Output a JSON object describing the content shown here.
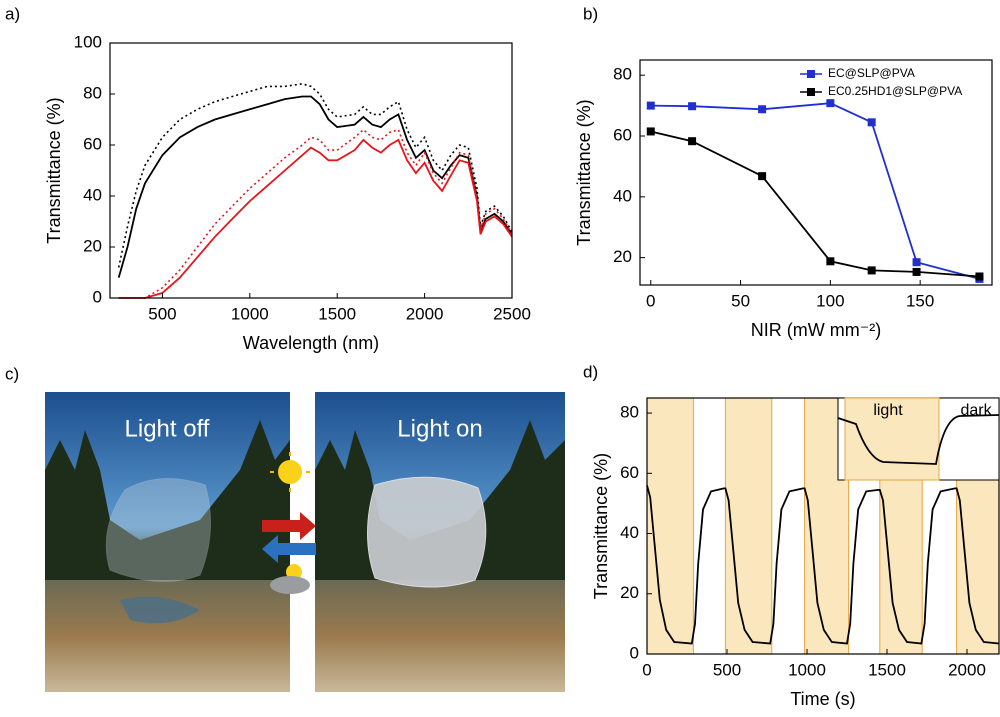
{
  "chart_data": [
    {
      "type": "line",
      "panel_label": "a)",
      "x_label": "Wavelength (nm)",
      "y_label": "Transmittance (%)",
      "xlim": [
        200,
        2500
      ],
      "xticks": [
        500,
        1000,
        1500,
        2000,
        2500
      ],
      "ylim": [
        0,
        100
      ],
      "yticks": [
        0,
        20,
        40,
        60,
        80,
        100
      ],
      "x": [
        250,
        300,
        350,
        400,
        500,
        600,
        700,
        800,
        900,
        1000,
        1100,
        1200,
        1300,
        1350,
        1400,
        1450,
        1500,
        1600,
        1650,
        1700,
        1750,
        1800,
        1850,
        1900,
        1950,
        2000,
        2050,
        2100,
        2150,
        2200,
        2250,
        2300,
        2320,
        2350,
        2400,
        2450,
        2500
      ],
      "series": [
        {
          "color": "#000000",
          "style": "solid",
          "values": [
            8,
            20,
            35,
            45,
            56,
            63,
            67,
            70,
            72,
            74,
            76,
            78,
            79,
            79,
            76,
            70,
            67,
            68,
            71,
            68,
            67,
            70,
            72,
            62,
            55,
            58,
            50,
            47,
            52,
            56,
            55,
            40,
            26,
            31,
            33,
            30,
            25
          ]
        },
        {
          "color": "#000000",
          "style": "dotted",
          "values": [
            12,
            28,
            42,
            52,
            63,
            70,
            74,
            77,
            79,
            81,
            83,
            83,
            84,
            83,
            80,
            74,
            71,
            72,
            75,
            72,
            72,
            75,
            77,
            66,
            59,
            63,
            54,
            50,
            56,
            60,
            59,
            43,
            28,
            34,
            36,
            32,
            26
          ]
        },
        {
          "color": "#e8141b",
          "style": "solid",
          "values": [
            0,
            0,
            0,
            0,
            2,
            8,
            16,
            24,
            31,
            38,
            44,
            50,
            56,
            59,
            57,
            54,
            54,
            58,
            62,
            59,
            57,
            60,
            62,
            54,
            49,
            53,
            46,
            42,
            48,
            54,
            53,
            38,
            25,
            30,
            32,
            29,
            24
          ]
        },
        {
          "color": "#e8141b",
          "style": "dotted",
          "values": [
            0,
            0,
            0,
            0,
            4,
            11,
            20,
            29,
            36,
            43,
            49,
            55,
            60,
            63,
            62,
            58,
            58,
            63,
            66,
            63,
            62,
            65,
            66,
            57,
            52,
            57,
            49,
            45,
            51,
            57,
            56,
            40,
            27,
            33,
            35,
            31,
            25
          ]
        }
      ]
    },
    {
      "type": "line",
      "panel_label": "b)",
      "x_label": "NIR (mW mm⁻²)",
      "y_label": "Transmittance (%)",
      "xlim": [
        -6,
        190
      ],
      "xticks": [
        0,
        50,
        100,
        150
      ],
      "ylim": [
        11,
        85
      ],
      "yticks": [
        20,
        40,
        60,
        80
      ],
      "x": [
        0,
        23,
        62,
        100,
        123,
        148,
        183
      ],
      "marker": "square",
      "legend": "top-right",
      "series": [
        {
          "name": "EC@SLP@PVA",
          "color": "#1f2fd0",
          "style": "solid",
          "values": [
            70,
            69.8,
            68.8,
            70.8,
            64.5,
            18.5,
            13
          ]
        },
        {
          "name": "EC0.25HD1@SLP@PVA",
          "color": "#000000",
          "style": "solid",
          "values": [
            61.5,
            58.3,
            46.8,
            18.8,
            15.8,
            15.3,
            13.8
          ]
        }
      ]
    },
    {
      "type": "line",
      "panel_label": "d)",
      "x_label": "Time (s)",
      "y_label": "Transmittance (%)",
      "xlim": [
        0,
        2200
      ],
      "xticks": [
        0,
        500,
        1000,
        1500,
        2000
      ],
      "ylim": [
        0,
        85
      ],
      "yticks": [
        0,
        20,
        40,
        60,
        80
      ],
      "shaded_ranges": [
        [
          0,
          290
        ],
        [
          490,
          780
        ],
        [
          985,
          1260
        ],
        [
          1455,
          1720
        ],
        [
          1935,
          2200
        ]
      ],
      "shade_color": "#fbe7bd",
      "inset_labels": [
        "light",
        "dark"
      ],
      "x": [
        0,
        20,
        50,
        80,
        120,
        170,
        280,
        300,
        320,
        350,
        400,
        480,
        490,
        510,
        540,
        570,
        610,
        660,
        770,
        790,
        810,
        840,
        890,
        975,
        985,
        1005,
        1035,
        1065,
        1105,
        1155,
        1250,
        1270,
        1290,
        1320,
        1370,
        1445,
        1455,
        1475,
        1505,
        1535,
        1575,
        1625,
        1715,
        1735,
        1755,
        1785,
        1835,
        1925,
        1935,
        1955,
        1985,
        2015,
        2055,
        2105,
        2200
      ],
      "series": [
        {
          "color": "#000000",
          "style": "solid",
          "values": [
            56,
            52,
            35,
            18,
            8,
            4,
            3.5,
            10,
            30,
            48,
            54,
            55,
            55,
            51,
            34,
            17,
            8,
            4,
            3.5,
            10,
            30,
            48,
            54,
            55,
            55,
            51,
            34,
            17,
            8,
            4,
            3.5,
            10,
            30,
            48,
            54,
            54.5,
            54.5,
            51,
            34,
            17,
            8,
            4,
            3.5,
            10,
            30,
            48,
            54,
            55,
            55,
            51,
            34,
            17,
            8,
            4,
            3.5
          ]
        }
      ]
    }
  ],
  "panel_c": {
    "label": "c)",
    "left_caption": "Light off",
    "right_caption": "Light on"
  }
}
